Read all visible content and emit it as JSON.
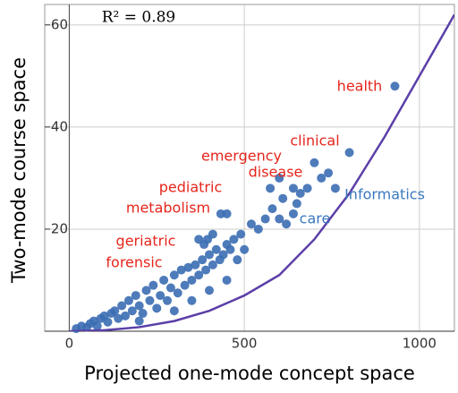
{
  "chart_data": {
    "type": "scatter",
    "x_label": "Projected one-mode concept space",
    "y_label": "Two-mode course space",
    "annotation": "R² = 0.89",
    "xlim": [
      -70,
      1100
    ],
    "ylim": [
      0,
      64
    ],
    "xticks": [
      0,
      500,
      1000
    ],
    "yticks": [
      20,
      40,
      60
    ],
    "grid": true,
    "series": [
      {
        "color": "#3b6db3",
        "x": [
          20,
          35,
          50,
          60,
          70,
          80,
          90,
          100,
          110,
          120,
          130,
          140,
          150,
          160,
          170,
          180,
          190,
          200,
          210,
          220,
          230,
          240,
          250,
          260,
          270,
          280,
          290,
          300,
          310,
          320,
          330,
          340,
          350,
          360,
          370,
          380,
          390,
          400,
          410,
          420,
          430,
          440,
          450,
          460,
          470,
          480,
          490,
          500,
          520,
          540,
          560,
          580,
          600,
          610,
          620,
          640,
          650,
          660,
          680,
          700,
          720,
          740,
          760,
          800,
          930,
          370,
          385,
          395,
          410,
          450,
          433,
          574,
          640,
          600,
          200,
          300,
          400,
          450,
          350
        ],
        "values": [
          0.5,
          1,
          0.8,
          1.5,
          2,
          1,
          2.5,
          3,
          1.8,
          3.5,
          4,
          2.5,
          5,
          3,
          6,
          4,
          7,
          5,
          3.5,
          8,
          6,
          9,
          4.5,
          7,
          10,
          6,
          8.5,
          11,
          7.5,
          12,
          9,
          12.5,
          10,
          13,
          11,
          14,
          12,
          15,
          13,
          16,
          14,
          15,
          17,
          16,
          18,
          14,
          19,
          16,
          21,
          20,
          22,
          24,
          22,
          26,
          21,
          23,
          25,
          27,
          28,
          33,
          30,
          31,
          28,
          35,
          48,
          18,
          17,
          18,
          19,
          23,
          23,
          28,
          28,
          30,
          2,
          4,
          8,
          10,
          6
        ]
      },
      {
        "type": "line",
        "color": "#5b3fa8",
        "x": [
          0,
          100,
          200,
          300,
          400,
          500,
          600,
          700,
          800,
          900,
          1000,
          1100
        ],
        "values": [
          0,
          0.2,
          0.8,
          2,
          4,
          7,
          11,
          18,
          27,
          38,
          50,
          62
        ]
      }
    ],
    "labels": [
      {
        "text": "health",
        "color": "#e5261c"
      },
      {
        "text": "clinical",
        "color": "#e5261c"
      },
      {
        "text": "emergency",
        "color": "#e5261c"
      },
      {
        "text": "disease",
        "color": "#e5261c"
      },
      {
        "text": "pediatric",
        "color": "#e5261c"
      },
      {
        "text": "metabolism",
        "color": "#e5261c"
      },
      {
        "text": "geriatric",
        "color": "#e5261c"
      },
      {
        "text": "forensic",
        "color": "#e5261c"
      },
      {
        "text": "Informatics",
        "color": "#3a78c0"
      },
      {
        "text": "care",
        "color": "#3a78c0"
      }
    ]
  }
}
